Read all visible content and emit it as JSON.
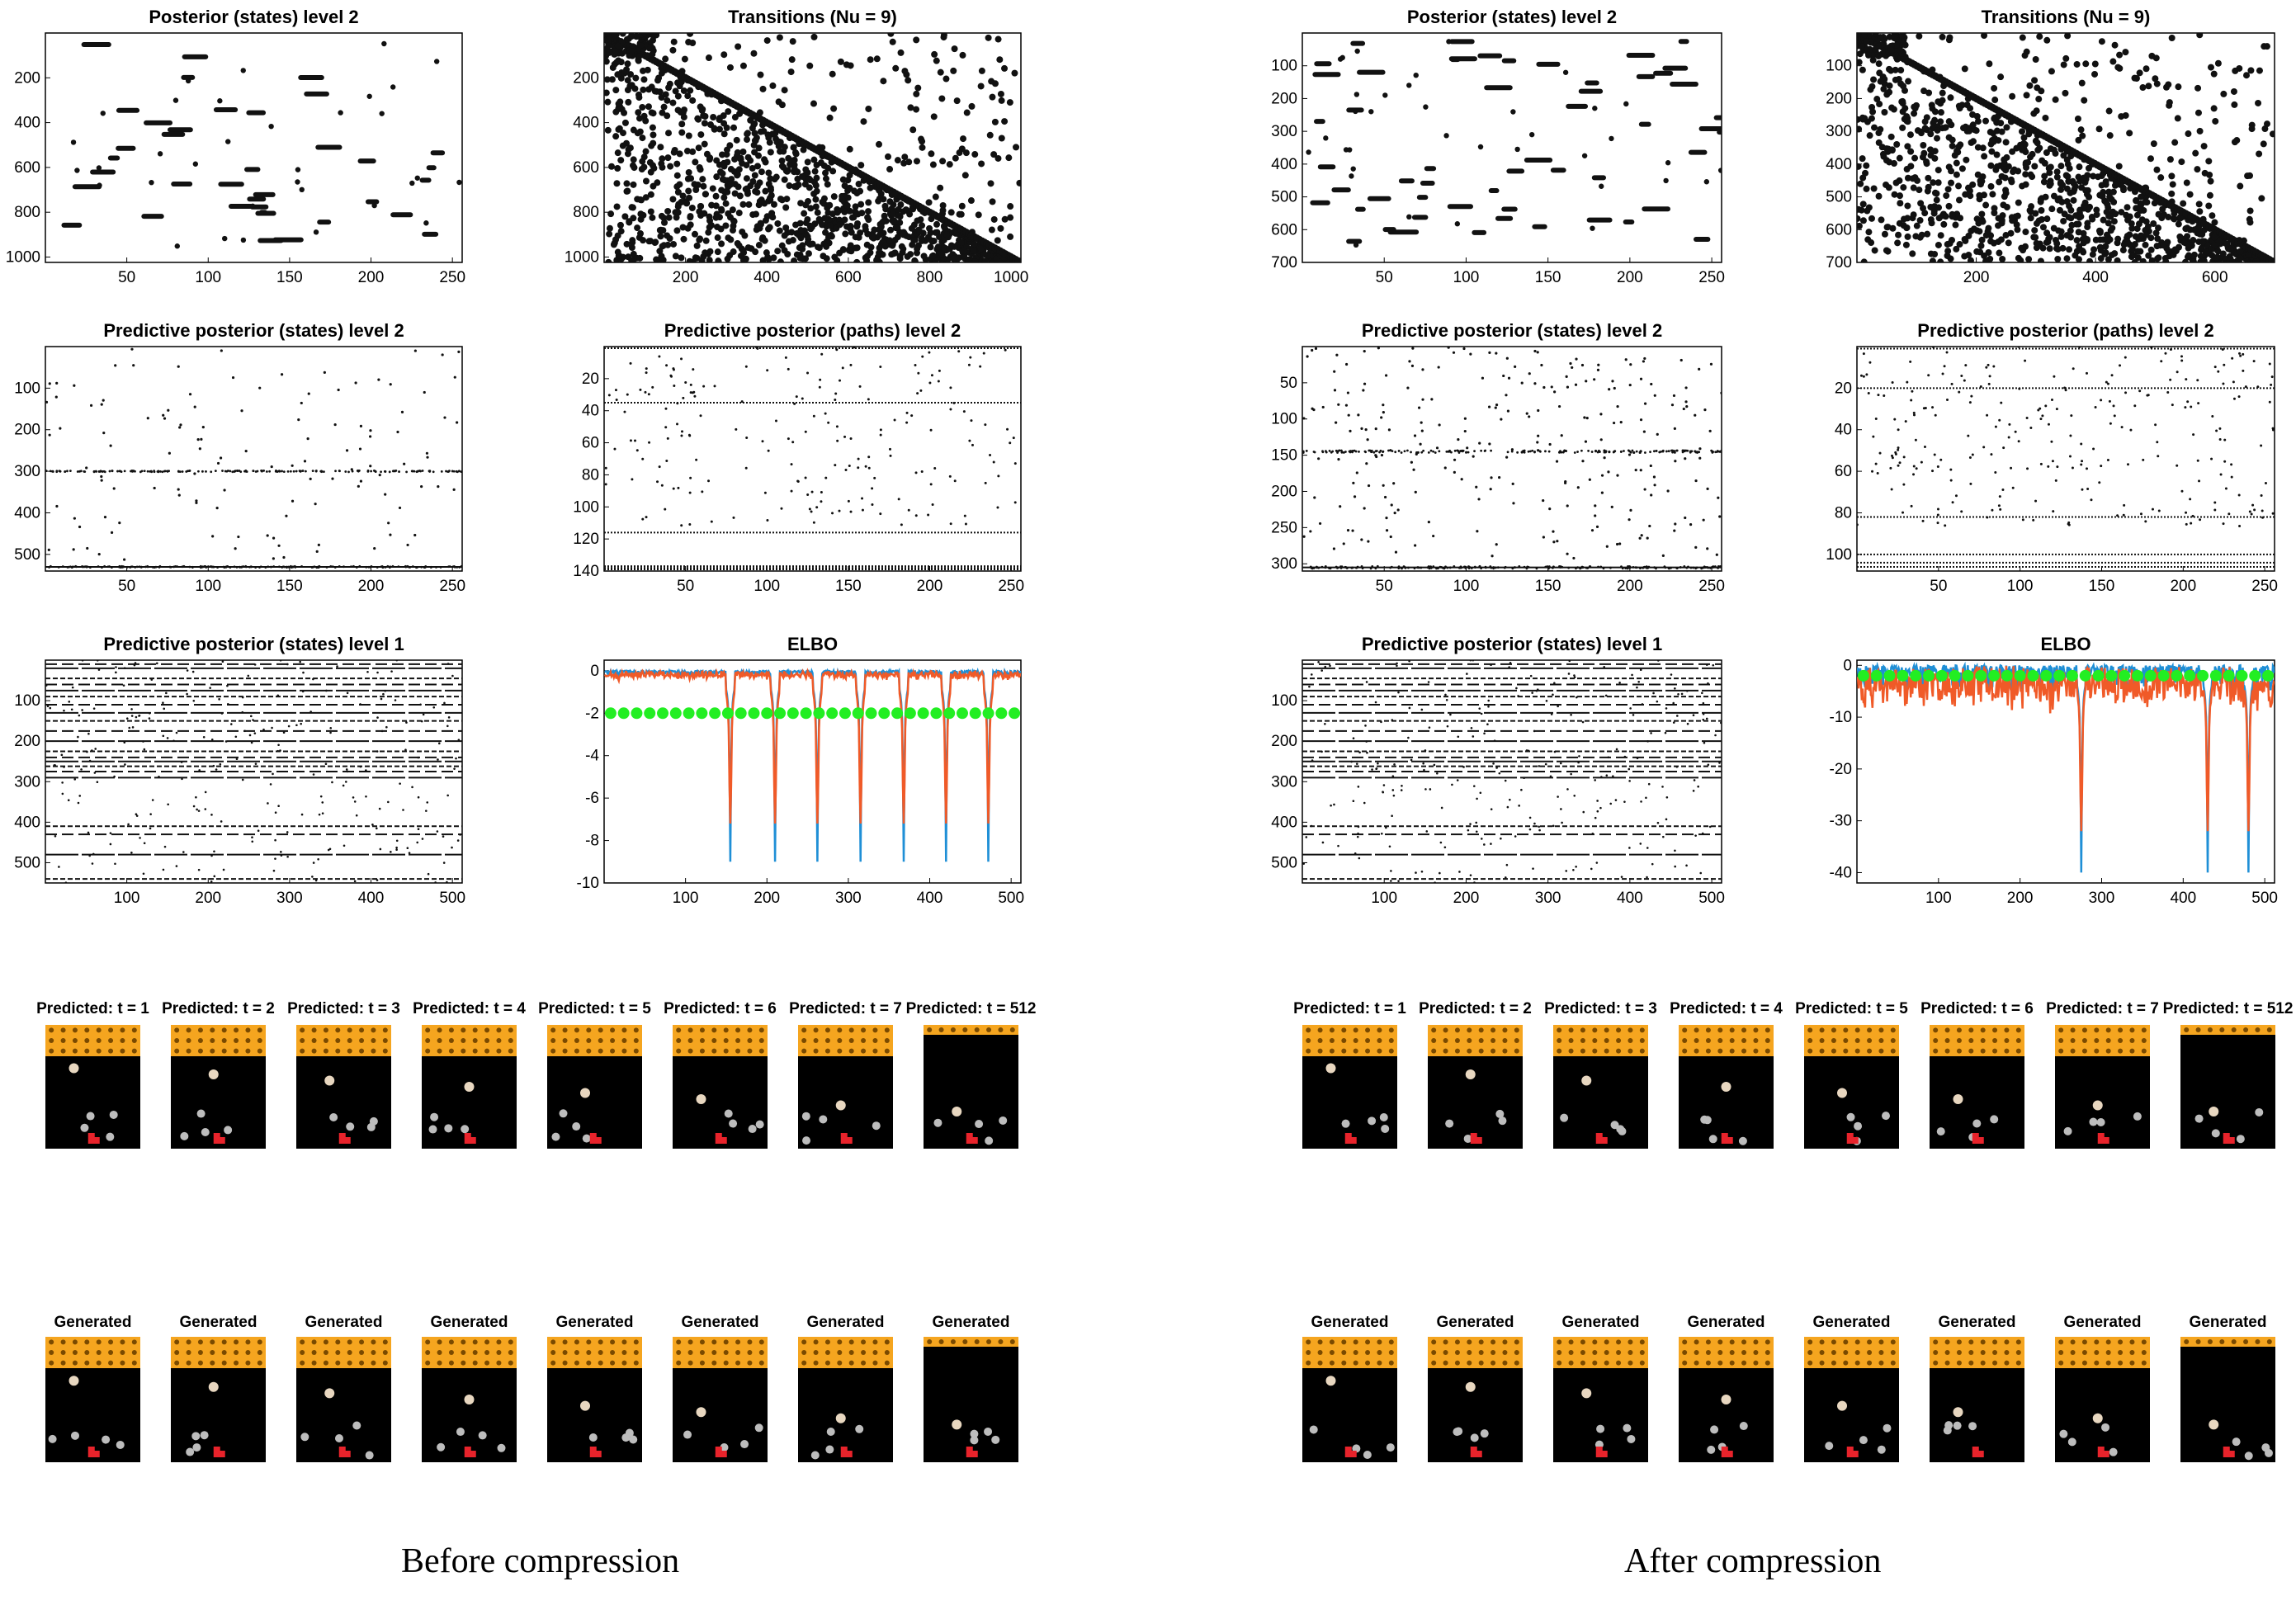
{
  "captions": {
    "left": "Before compression",
    "right": "After compression"
  },
  "colors": {
    "marker": "#111111",
    "elbo_blue": "#1f8fd6",
    "elbo_orange": "#f05a28",
    "elbo_green": "#22ee22",
    "game_bg": "#000000",
    "tiles": "#f5a51f",
    "tile_dots": "#7a4a00",
    "ball": "#e8d7c0",
    "debris": "#bdbdbd",
    "paddle": "#e8232b"
  },
  "panels": {
    "before": {
      "post_states_l2": {
        "type": "scatter",
        "title": "Posterior (states) level 2",
        "xlim": [
          0,
          256
        ],
        "ylim": [
          1024,
          0
        ],
        "xticks": [
          50,
          100,
          150,
          200,
          250
        ],
        "yticks": [
          200,
          400,
          600,
          800,
          1000
        ],
        "pattern": "segments",
        "n_segments": 70,
        "seed": 11
      },
      "transitions": {
        "type": "scatter",
        "title": "Transitions (Nu = 9)",
        "xlim": [
          0,
          1024
        ],
        "ylim": [
          1024,
          0
        ],
        "xticks": [
          200,
          400,
          600,
          800,
          1000
        ],
        "yticks": [
          200,
          400,
          600,
          800,
          1000
        ],
        "pattern": "transitions",
        "n_points": 1200,
        "seed": 12
      },
      "pred_states_l2": {
        "type": "scatter",
        "title": "Predictive posterior (states) level 2",
        "xlim": [
          0,
          256
        ],
        "ylim": [
          540,
          0
        ],
        "xticks": [
          50,
          100,
          150,
          200,
          250
        ],
        "yticks": [
          100,
          200,
          300,
          400,
          500
        ],
        "pattern": "sparse",
        "bands": [
          300,
          530
        ],
        "n_points": 120,
        "seed": 13
      },
      "pred_paths_l2": {
        "type": "scatter",
        "title": "Predictive posterior (paths) level 2",
        "xlim": [
          0,
          256
        ],
        "ylim": [
          140,
          0
        ],
        "xticks": [
          50,
          100,
          150,
          200,
          250
        ],
        "yticks": [
          20,
          40,
          60,
          80,
          100,
          120,
          140
        ],
        "pattern": "rows",
        "lines": [
          1,
          35,
          116,
          137,
          138,
          139
        ],
        "n_points": 200,
        "seed": 14
      },
      "pred_states_l1": {
        "type": "scatter",
        "title": "Predictive posterior (states) level 1",
        "xlim": [
          0,
          512
        ],
        "ylim": [
          550,
          0
        ],
        "xticks": [
          100,
          200,
          300,
          400,
          500
        ],
        "yticks": [
          100,
          200,
          300,
          400,
          500
        ],
        "pattern": "dense_rows",
        "lines": [
          10,
          20,
          45,
          60,
          75,
          90,
          110,
          130,
          150,
          175,
          200,
          225,
          240,
          250,
          262,
          275,
          290,
          410,
          430,
          480,
          540
        ],
        "seed": 15
      },
      "elbo": {
        "type": "line",
        "title": "ELBO",
        "xlim": [
          0,
          512
        ],
        "ylim": [
          -10,
          0.5
        ],
        "xticks": [
          100,
          200,
          300,
          400,
          500
        ],
        "yticks": [
          0,
          -2,
          -4,
          -6,
          -8,
          -10
        ],
        "green_level": -2,
        "dip_x": [
          155,
          210,
          262,
          315,
          368,
          420,
          472
        ],
        "dip_depth": -9,
        "noise": 0.6,
        "seed": 16
      }
    },
    "after": {
      "post_states_l2": {
        "type": "scatter",
        "title": "Posterior (states) level 2",
        "xlim": [
          0,
          256
        ],
        "ylim": [
          700,
          0
        ],
        "xticks": [
          50,
          100,
          150,
          200,
          250
        ],
        "yticks": [
          100,
          200,
          300,
          400,
          500,
          600,
          700
        ],
        "pattern": "segments",
        "n_segments": 90,
        "seed": 21
      },
      "transitions": {
        "type": "scatter",
        "title": "Transitions (Nu = 9)",
        "xlim": [
          0,
          700
        ],
        "ylim": [
          700,
          0
        ],
        "xticks": [
          200,
          400,
          600
        ],
        "yticks": [
          100,
          200,
          300,
          400,
          500,
          600,
          700
        ],
        "pattern": "transitions",
        "n_points": 1100,
        "seed": 22
      },
      "pred_states_l2": {
        "type": "scatter",
        "title": "Predictive posterior (states) level 2",
        "xlim": [
          0,
          256
        ],
        "ylim": [
          310,
          0
        ],
        "xticks": [
          50,
          100,
          150,
          200,
          250
        ],
        "yticks": [
          50,
          100,
          150,
          200,
          250,
          300
        ],
        "pattern": "sparse",
        "bands": [
          145,
          305
        ],
        "n_points": 260,
        "seed": 23
      },
      "pred_paths_l2": {
        "type": "scatter",
        "title": "Predictive posterior (paths) level 2",
        "xlim": [
          0,
          256
        ],
        "ylim": [
          108,
          0
        ],
        "xticks": [
          50,
          100,
          150,
          200,
          250
        ],
        "yticks": [
          20,
          40,
          60,
          80,
          100
        ],
        "pattern": "rows",
        "lines": [
          1,
          20,
          82,
          100,
          104,
          106
        ],
        "n_points": 260,
        "seed": 24
      },
      "pred_states_l1": {
        "type": "scatter",
        "title": "Predictive posterior (states) level 1",
        "xlim": [
          0,
          512
        ],
        "ylim": [
          550,
          0
        ],
        "xticks": [
          100,
          200,
          300,
          400,
          500
        ],
        "yticks": [
          100,
          200,
          300,
          400,
          500
        ],
        "pattern": "dense_rows",
        "lines": [
          10,
          20,
          45,
          60,
          75,
          90,
          110,
          130,
          150,
          175,
          200,
          225,
          240,
          250,
          262,
          275,
          290,
          410,
          430,
          480,
          540
        ],
        "seed": 25
      },
      "elbo": {
        "type": "line",
        "title": "ELBO",
        "xlim": [
          0,
          512
        ],
        "ylim": [
          -42,
          1
        ],
        "xticks": [
          100,
          200,
          300,
          400,
          500
        ],
        "yticks": [
          0,
          -10,
          -20,
          -30,
          -40
        ],
        "green_level": -2,
        "dip_x": [
          275,
          430,
          480
        ],
        "dip_depth": -40,
        "noise": 12,
        "seed": 26
      }
    }
  },
  "frames": {
    "predicted_titles": [
      "Predicted: t = 1",
      "Predicted: t = 2",
      "Predicted: t = 3",
      "Predicted: t = 4",
      "Predicted: t = 5",
      "Predicted: t = 6",
      "Predicted: t = 7",
      "Predicted: t = 512"
    ],
    "generated_titles": [
      "Generated",
      "Generated",
      "Generated",
      "Generated",
      "Generated",
      "Generated",
      "Generated",
      "Generated"
    ]
  }
}
